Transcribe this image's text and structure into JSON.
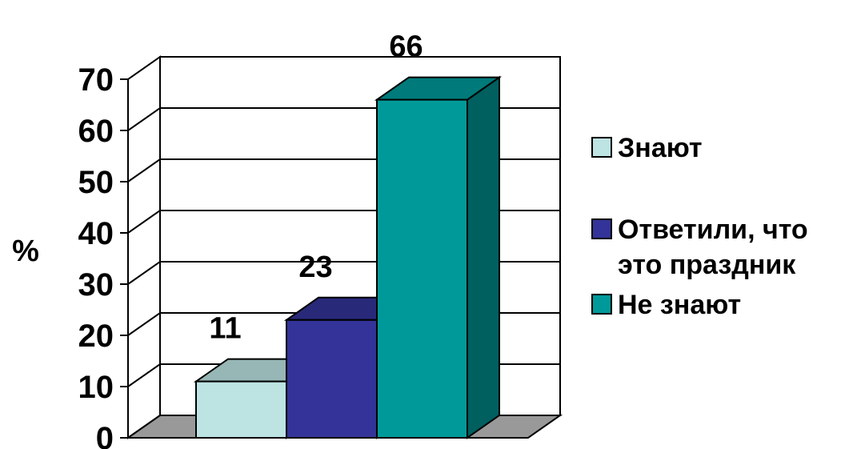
{
  "chart_data": {
    "type": "bar",
    "title": "",
    "xlabel": "",
    "ylabel": "%",
    "ylim": [
      0,
      70
    ],
    "yticks": [
      "0",
      "10",
      "20",
      "30",
      "40",
      "50",
      "60",
      "70"
    ],
    "grid": true,
    "three_d": true,
    "legend_position": "right",
    "series": [
      {
        "name": "Знают",
        "value": 11,
        "label": "11",
        "color": "#bde3e3"
      },
      {
        "name": "Ответили, что это праздник",
        "name_lines": [
          "Ответили, что",
          "это праздник"
        ],
        "value": 23,
        "label": "23",
        "color": "#333399"
      },
      {
        "name": "Не знают",
        "value": 66,
        "label": "66",
        "color": "#009999"
      }
    ]
  }
}
